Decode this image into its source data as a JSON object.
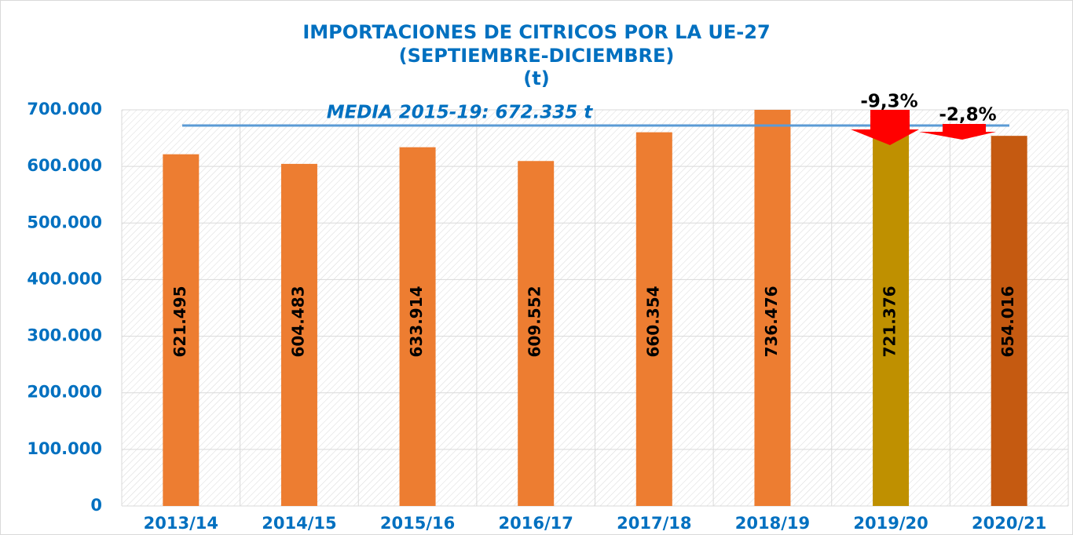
{
  "chart_data": {
    "type": "bar",
    "title": [
      "IMPORTACIONES DE CITRICOS POR LA UE-27",
      "(SEPTIEMBRE-DICIEMBRE)",
      "(t)"
    ],
    "categories": [
      "2013/14",
      "2014/15",
      "2015/16",
      "2016/17",
      "2017/18",
      "2018/19",
      "2019/20",
      "2020/21"
    ],
    "values": [
      621495,
      604483,
      633914,
      609552,
      660354,
      736476,
      721376,
      654016
    ],
    "value_labels": [
      "621.495",
      "604.483",
      "633.914",
      "609.552",
      "660.354",
      "736.476",
      "721.376",
      "654.016"
    ],
    "colors": [
      "#ed7d31",
      "#ed7d31",
      "#ed7d31",
      "#ed7d31",
      "#ed7d31",
      "#ed7d31",
      "#bf9000",
      "#c55a11"
    ],
    "ylim": [
      0,
      700000
    ],
    "yticks": [
      0,
      {
        "value": 100000,
        "label": "100.000"
      },
      {
        "value": 200000,
        "label": "200.000"
      },
      {
        "value": 300000,
        "label": "300.000"
      },
      {
        "value": 400000,
        "label": "400.000"
      },
      {
        "value": 500000,
        "label": "500.000"
      },
      {
        "value": 600000,
        "label": "600.000"
      },
      {
        "value": 700000,
        "label": "700.000"
      }
    ],
    "grid": true,
    "mean_line": {
      "value": 672335,
      "label": "MEDIA 2015-19: 672.335 t",
      "color": "#5b9bd5"
    },
    "annotations": [
      {
        "text": "-9,3%"
      },
      {
        "text": "-2,8%"
      }
    ]
  }
}
